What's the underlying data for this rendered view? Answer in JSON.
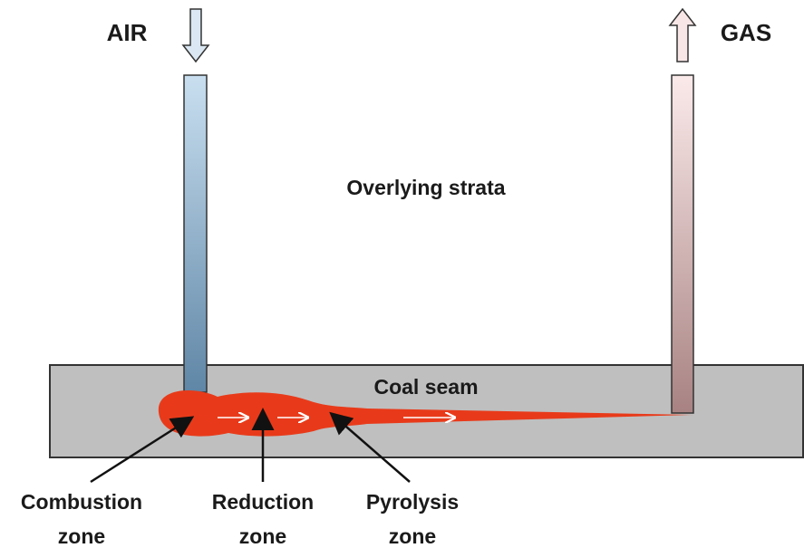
{
  "labels": {
    "air": "AIR",
    "gas": "GAS",
    "strata": "Overlying strata",
    "seam": "Coal seam"
  },
  "zones": [
    {
      "lines": [
        "Combustion",
        "zone"
      ]
    },
    {
      "lines": [
        "Reduction",
        "zone"
      ]
    },
    {
      "lines": [
        "Pyrolysis",
        "zone"
      ]
    }
  ]
}
